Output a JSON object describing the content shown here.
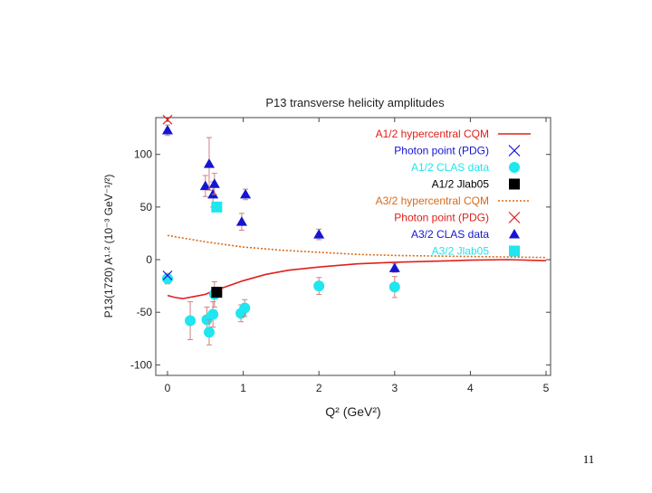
{
  "page_number": "11",
  "colors": {
    "red": "#e0201b",
    "blue": "#1515d0",
    "cyan": "#1fe6ef",
    "black": "#000000",
    "orange": "#d86a1a",
    "error_bar": "#d08080"
  },
  "chart_data": {
    "type": "scatter",
    "title": "P13 transverse helicity amplitudes",
    "xlabel": "Q² (GeV²)",
    "ylabel": "P13(1720) A¹·² (10⁻³ GeV⁻¹/²)",
    "xlim": [
      0,
      5
    ],
    "ylim": [
      -110,
      135
    ],
    "x_ticks": [
      {
        "value": 0,
        "label": "0"
      },
      {
        "value": 1,
        "label": "1"
      },
      {
        "value": 2,
        "label": "2"
      },
      {
        "value": 3,
        "label": "3"
      },
      {
        "value": 4,
        "label": "4"
      },
      {
        "value": 5,
        "label": "5"
      }
    ],
    "y_ticks": [
      {
        "value": 100,
        "label": "100"
      },
      {
        "value": 50,
        "label": "50"
      },
      {
        "value": 0,
        "label": "0"
      },
      {
        "value": -50,
        "label": "-50"
      },
      {
        "value": -100,
        "label": "-100"
      }
    ],
    "grid": false,
    "legend_position": "top-right",
    "legend": [
      {
        "label": "A1/2 hypercentral CQM",
        "marker": "line-solid",
        "color": "#e0201b"
      },
      {
        "label": "Photon point (PDG)",
        "marker": "x",
        "color": "#1515d0"
      },
      {
        "label": "A1/2 CLAS data",
        "marker": "circle",
        "color": "#1fe6ef"
      },
      {
        "label": "A1/2 Jlab05",
        "marker": "square",
        "color": "#000000"
      },
      {
        "label": "A3/2 hypercentral CQM",
        "marker": "line-dotted",
        "color": "#d86a1a"
      },
      {
        "label": "Photon point (PDG)",
        "marker": "x",
        "color": "#e0201b"
      },
      {
        "label": "A3/2 CLAS data",
        "marker": "triangle",
        "color": "#1515d0"
      },
      {
        "label": "A3/2 Jlab05",
        "marker": "square",
        "color": "#1fe6ef"
      }
    ],
    "series": [
      {
        "name": "A1/2 hypercentral CQM",
        "kind": "line",
        "style": "solid",
        "color": "#e0201b",
        "x": [
          0,
          0.1,
          0.2,
          0.35,
          0.5,
          0.6,
          0.8,
          1.0,
          1.3,
          1.6,
          2.0,
          2.5,
          3.0,
          3.5,
          4.0,
          4.5,
          5.0
        ],
        "y": [
          -34,
          -36,
          -37,
          -35,
          -33,
          -30,
          -25,
          -20,
          -14,
          -10,
          -7,
          -4,
          -2.5,
          -1.5,
          -0.5,
          0,
          -1
        ]
      },
      {
        "name": "A3/2 hypercentral CQM",
        "kind": "line",
        "style": "dotted",
        "color": "#d86a1a",
        "x": [
          0,
          0.5,
          1.0,
          1.5,
          2.0,
          2.5,
          3.0,
          3.5,
          4.0,
          4.5,
          5.0
        ],
        "y": [
          23,
          17,
          12,
          9,
          7,
          5,
          4,
          3.5,
          3,
          2.5,
          2
        ]
      },
      {
        "name": "A1/2 CLAS data",
        "kind": "points",
        "marker": "circle",
        "color": "#1fe6ef",
        "x": [
          0.0,
          0.3,
          0.52,
          0.55,
          0.6,
          0.62,
          0.97,
          1.02,
          2.0,
          3.0
        ],
        "y": [
          -18,
          -58,
          -57,
          -69,
          -52,
          -33,
          -51,
          -46,
          -25,
          -26
        ],
        "err": [
          5,
          18,
          12,
          12,
          12,
          12,
          8,
          8,
          8,
          10
        ]
      },
      {
        "name": "A3/2 CLAS data",
        "kind": "points",
        "marker": "triangle",
        "color": "#1515d0",
        "x": [
          0.0,
          0.5,
          0.55,
          0.6,
          0.62,
          0.98,
          1.03,
          2.0,
          3.0
        ],
        "y": [
          123,
          70,
          91,
          62,
          72,
          36,
          62,
          24,
          -8
        ],
        "err": [
          5,
          10,
          25,
          12,
          10,
          8,
          5,
          5,
          4
        ]
      },
      {
        "name": "A1/2 Jlab05",
        "kind": "points",
        "marker": "square",
        "color": "#000000",
        "x": [
          0.65
        ],
        "y": [
          -31
        ],
        "err": [
          3
        ]
      },
      {
        "name": "A3/2 Jlab05",
        "kind": "points",
        "marker": "square",
        "color": "#1fe6ef",
        "x": [
          0.65
        ],
        "y": [
          50
        ],
        "err": [
          3
        ]
      },
      {
        "name": "Photon point A1/2 (PDG)",
        "kind": "points",
        "marker": "x",
        "color": "#1515d0",
        "x": [
          0.0
        ],
        "y": [
          -15
        ]
      },
      {
        "name": "Photon point A3/2 (PDG)",
        "kind": "points",
        "marker": "x",
        "color": "#e0201b",
        "x": [
          0.0
        ],
        "y": [
          133
        ]
      }
    ]
  }
}
